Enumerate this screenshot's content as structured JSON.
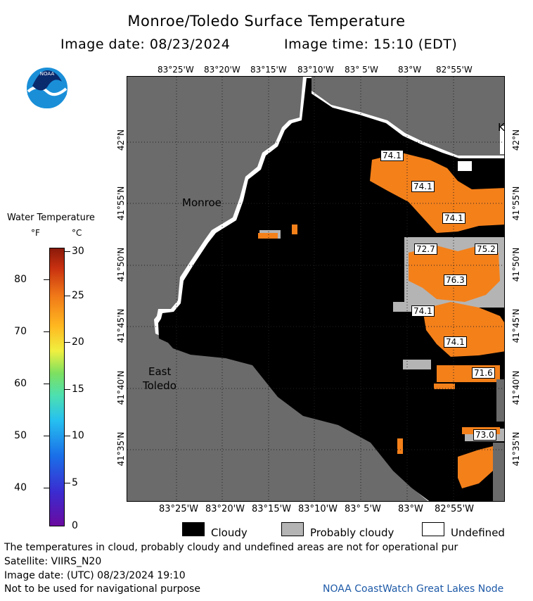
{
  "header": {
    "title": "Monroe/Toledo Surface Temperature",
    "image_date": "Image date: 08/23/2024",
    "image_time": "Image time: 15:10 (EDT)"
  },
  "logo": {
    "text": "NOAA",
    "icon": "noaa-logo-icon"
  },
  "map": {
    "longitude_labels": [
      "83°25'W",
      "83°20'W",
      "83°15'W",
      "83°10'W",
      "83° 5'W",
      "83°W",
      "82°55'W"
    ],
    "latitude_labels": [
      "42°N",
      "41°55'N",
      "41°50'N",
      "41°45'N",
      "41°40'N",
      "41°35'N"
    ],
    "places": {
      "monroe": "Monroe",
      "east_toledo_1": "East",
      "east_toledo_2": "Toledo",
      "k": "K"
    },
    "temperature_labels": [
      "74.1",
      "74.1",
      "74.1",
      "72.7",
      "75.2",
      "76.3",
      "74.1",
      "74.1",
      "71.6",
      "73.0"
    ],
    "colors": {
      "land": "#6b6b6b",
      "cloud": "#000000",
      "probably_cloudy": "#b4b4b4",
      "undefined": "#ffffff",
      "water_warm": "#f4801a"
    }
  },
  "colorbar": {
    "title": "Water Temperature",
    "unit_f": "°F",
    "unit_c": "°C",
    "fahrenheit_ticks": [
      "80",
      "70",
      "60",
      "50",
      "40"
    ],
    "celsius_ticks": [
      "30",
      "25",
      "20",
      "15",
      "10",
      "5",
      "0"
    ]
  },
  "legend": {
    "cloudy": "Cloudy",
    "probably_cloudy": "Probably cloudy",
    "undefined": "Undefined"
  },
  "footer": {
    "note": "The temperatures in cloud, probably cloudy and undefined areas are not for operational pur",
    "satellite": "Satellite: VIIRS_N20",
    "utc_date": "Image date: (UTC) 08/23/2024  19:10",
    "nav_note": "Not to be used for navigational purpose",
    "credit": "NOAA CoastWatch Great Lakes Node"
  }
}
